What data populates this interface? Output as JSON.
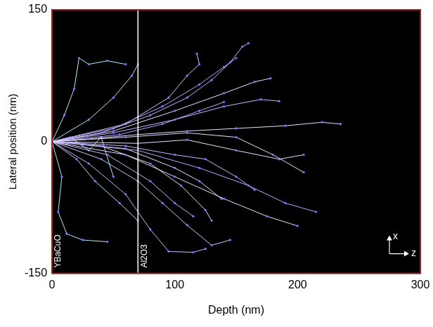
{
  "chart_data": {
    "type": "line",
    "marker": "circle",
    "grid": false,
    "x_label": "Depth (nm)",
    "y_label": "Lateral position (nm)",
    "xlim": [
      0,
      300
    ],
    "xticks": [
      0,
      100,
      200,
      300
    ],
    "ylim": [
      -150,
      150
    ],
    "yticks": [
      -150,
      0,
      150
    ],
    "vlines": [
      {
        "x": 70,
        "color": "#ffffff"
      }
    ],
    "annotations": [
      {
        "text": "YBaCuO",
        "x": 0
      },
      {
        "text": "Al2O3",
        "x": 70
      }
    ],
    "axis_symbol": {
      "up": "x",
      "right": "z"
    },
    "series": [
      {
        "color": "#e4e0ff",
        "x": [
          0,
          30,
          70,
          110,
          150,
          190,
          220,
          235
        ],
        "values": [
          0,
          3,
          8,
          12,
          15,
          18,
          22,
          20
        ]
      },
      {
        "color": "#c8b8ff",
        "x": [
          0,
          40,
          80,
          110,
          130,
          145,
          155,
          160
        ],
        "values": [
          0,
          10,
          30,
          50,
          70,
          90,
          108,
          112
        ]
      },
      {
        "color": "#a8f0ff",
        "x": [
          0,
          10,
          18,
          22,
          30,
          45,
          60
        ],
        "values": [
          0,
          30,
          60,
          95,
          88,
          92,
          88
        ]
      },
      {
        "color": "#a8f0ff",
        "x": [
          0,
          8,
          5,
          12,
          25,
          45
        ],
        "values": [
          0,
          -40,
          -80,
          -105,
          -112,
          -114
        ]
      },
      {
        "color": "#d0c8ff",
        "x": [
          0,
          40,
          70,
          90,
          110,
          130,
          145
        ],
        "values": [
          0,
          -20,
          -45,
          -70,
          -95,
          -118,
          -112
        ]
      },
      {
        "color": "#c8b8ff",
        "x": [
          0,
          30,
          60,
          80,
          95,
          115,
          125
        ],
        "values": [
          0,
          -25,
          -60,
          -100,
          -125,
          -126,
          -122
        ]
      },
      {
        "color": "#e4e0ff",
        "x": [
          0,
          60,
          100,
          140,
          175,
          200
        ],
        "values": [
          0,
          -15,
          -40,
          -65,
          -85,
          -96
        ]
      },
      {
        "color": "#b8a8ff",
        "x": [
          0,
          70,
          120,
          160,
          190,
          215
        ],
        "values": [
          0,
          -10,
          -30,
          -50,
          -70,
          -80
        ]
      },
      {
        "color": "#e4e0ff",
        "x": [
          0,
          60,
          110,
          150,
          180,
          205
        ],
        "values": [
          0,
          5,
          10,
          5,
          -15,
          -35
        ]
      },
      {
        "color": "#c8b8ff",
        "x": [
          0,
          50,
          100,
          140,
          170,
          185
        ],
        "values": [
          0,
          10,
          25,
          40,
          48,
          46
        ]
      },
      {
        "color": "#e4e0ff",
        "x": [
          0,
          50,
          100,
          140,
          165,
          178
        ],
        "values": [
          0,
          12,
          35,
          55,
          68,
          72
        ]
      },
      {
        "color": "#b8a8ff",
        "x": [
          0,
          50,
          90,
          120,
          140,
          150
        ],
        "values": [
          0,
          15,
          40,
          65,
          85,
          95
        ]
      },
      {
        "color": "#e4e0ff",
        "x": [
          0,
          40,
          80,
          105,
          125,
          130
        ],
        "values": [
          0,
          -5,
          -25,
          -50,
          -78,
          -90
        ]
      },
      {
        "color": "#c8b8ff",
        "x": [
          0,
          60,
          100,
          125,
          150,
          165
        ],
        "values": [
          0,
          -5,
          -15,
          -20,
          -40,
          -55
        ]
      },
      {
        "color": "#a8f0ff",
        "x": [
          0,
          30,
          50,
          65,
          70
        ],
        "values": [
          0,
          25,
          50,
          75,
          88
        ]
      },
      {
        "color": "#a8f0ff",
        "x": [
          0,
          20,
          35,
          55,
          70
        ],
        "values": [
          0,
          -20,
          -45,
          -70,
          -90
        ]
      },
      {
        "color": "#e4e0ff",
        "x": [
          0,
          70,
          110,
          150,
          185,
          205
        ],
        "values": [
          0,
          -2,
          2,
          -10,
          -20,
          -15
        ]
      },
      {
        "color": "#b8a8ff",
        "x": [
          0,
          55,
          90,
          120,
          140
        ],
        "values": [
          0,
          8,
          20,
          35,
          45
        ]
      },
      {
        "color": "#e4e0ff",
        "x": [
          0,
          60,
          100,
          120,
          138
        ],
        "values": [
          0,
          -8,
          -30,
          -45,
          -65
        ]
      },
      {
        "color": "#c8b8ff",
        "x": [
          0,
          45,
          80,
          100,
          115
        ],
        "values": [
          0,
          -15,
          -45,
          -70,
          -85
        ]
      },
      {
        "color": "#a8f0ff",
        "x": [
          0,
          15,
          30,
          40,
          50
        ],
        "values": [
          0,
          5,
          -10,
          5,
          -40
        ]
      },
      {
        "color": "#d0c8ff",
        "x": [
          0,
          60,
          95,
          110,
          120,
          118
        ],
        "values": [
          0,
          20,
          50,
          75,
          88,
          100
        ]
      }
    ]
  }
}
